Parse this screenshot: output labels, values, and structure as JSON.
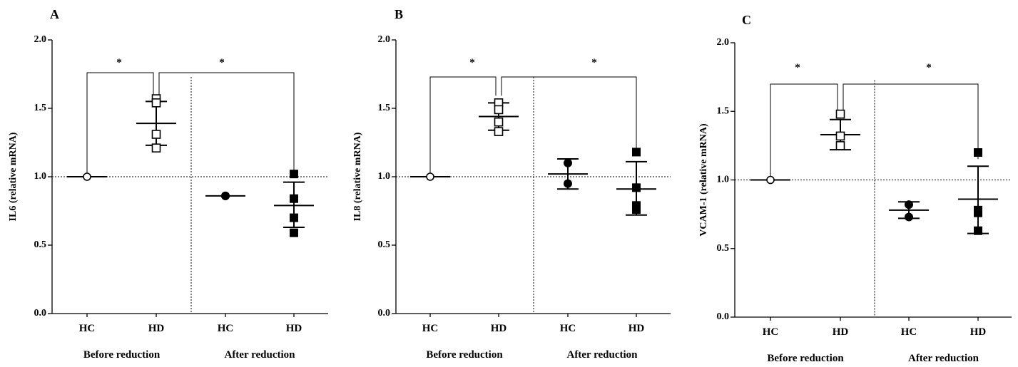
{
  "chart_data": [
    {
      "type": "scatter",
      "panel_letter": "A",
      "ylabel": "IL6 (relative mRNA)",
      "ylim": [
        0,
        2.0
      ],
      "yticks": [
        "0.0",
        "0.5",
        "1.0",
        "1.5",
        "2.0"
      ],
      "categories": [
        "HC",
        "HD",
        "HC",
        "HD"
      ],
      "groups": [
        "Before reduction",
        "After reduction"
      ],
      "reference_line": 1.0,
      "significance": [
        "*",
        "*"
      ],
      "series": [
        {
          "category": "HC",
          "marker": "open-circle",
          "points": [
            1.0
          ],
          "mean": 1.0,
          "sd": [
            1.0,
            1.0
          ]
        },
        {
          "category": "HD",
          "marker": "open-square",
          "points": [
            1.57,
            1.54,
            1.31,
            1.21
          ],
          "mean": 1.39,
          "sd": [
            1.23,
            1.55
          ]
        },
        {
          "category": "HC",
          "marker": "filled-circle",
          "points": [
            0.86,
            0.86
          ],
          "mean": 0.86,
          "sd": [
            0.86,
            0.86
          ]
        },
        {
          "category": "HD",
          "marker": "filled-square",
          "points": [
            1.02,
            0.84,
            0.7,
            0.59
          ],
          "mean": 0.79,
          "sd": [
            0.63,
            0.96
          ]
        }
      ]
    },
    {
      "type": "scatter",
      "panel_letter": "B",
      "ylabel": "IL8 (relative mRNA)",
      "ylim": [
        0,
        2.0
      ],
      "yticks": [
        "0.0",
        "0.5",
        "1.0",
        "1.5",
        "2.0"
      ],
      "categories": [
        "HC",
        "HD",
        "HC",
        "HD"
      ],
      "groups": [
        "Before reduction",
        "After reduction"
      ],
      "reference_line": 1.0,
      "significance": [
        "*",
        "*"
      ],
      "series": [
        {
          "category": "HC",
          "marker": "open-circle",
          "points": [
            1.0
          ],
          "mean": 1.0,
          "sd": [
            1.0,
            1.0
          ]
        },
        {
          "category": "HD",
          "marker": "open-square",
          "points": [
            1.54,
            1.49,
            1.4,
            1.33
          ],
          "mean": 1.44,
          "sd": [
            1.34,
            1.54
          ]
        },
        {
          "category": "HC",
          "marker": "filled-circle",
          "points": [
            1.1,
            0.95
          ],
          "mean": 1.02,
          "sd": [
            0.91,
            1.13
          ]
        },
        {
          "category": "HD",
          "marker": "filled-square",
          "points": [
            1.18,
            0.92,
            0.79,
            0.76
          ],
          "mean": 0.91,
          "sd": [
            0.72,
            1.11
          ]
        }
      ]
    },
    {
      "type": "scatter",
      "panel_letter": "C",
      "ylabel": "VCAM-1 (relative mRNA)",
      "ylim": [
        0,
        2.0
      ],
      "yticks": [
        "0.0",
        "0.5",
        "1.0",
        "1.5",
        "2.0"
      ],
      "categories": [
        "HC",
        "HD",
        "HC",
        "HD"
      ],
      "groups": [
        "Before reduction",
        "After reduction"
      ],
      "reference_line": 1.0,
      "significance": [
        "*",
        "*"
      ],
      "series": [
        {
          "category": "HC",
          "marker": "open-circle",
          "points": [
            1.0
          ],
          "mean": 1.0,
          "sd": [
            1.0,
            1.0
          ]
        },
        {
          "category": "HD",
          "marker": "open-square",
          "points": [
            1.48,
            1.32,
            1.25
          ],
          "mean": 1.33,
          "sd": [
            1.22,
            1.44
          ]
        },
        {
          "category": "HC",
          "marker": "filled-circle",
          "points": [
            0.82,
            0.73
          ],
          "mean": 0.78,
          "sd": [
            0.72,
            0.84
          ]
        },
        {
          "category": "HD",
          "marker": "filled-square",
          "points": [
            1.2,
            0.78,
            0.76,
            0.63
          ],
          "mean": 0.86,
          "sd": [
            0.61,
            1.1
          ]
        }
      ]
    }
  ]
}
